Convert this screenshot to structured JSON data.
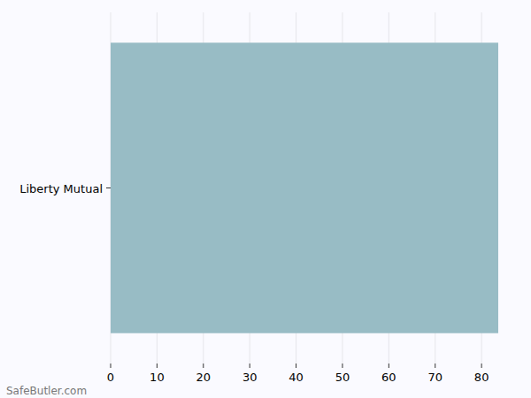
{
  "chart_data": {
    "type": "bar",
    "orientation": "horizontal",
    "categories": [
      "Liberty Mutual"
    ],
    "values": [
      83.6
    ],
    "color": "#98bcc5",
    "xlim": [
      0,
      83.6
    ],
    "xticks": [
      0,
      10,
      20,
      30,
      40,
      50,
      60,
      70,
      80
    ],
    "grid": true,
    "annotations": [
      "SafeButler.com"
    ]
  }
}
